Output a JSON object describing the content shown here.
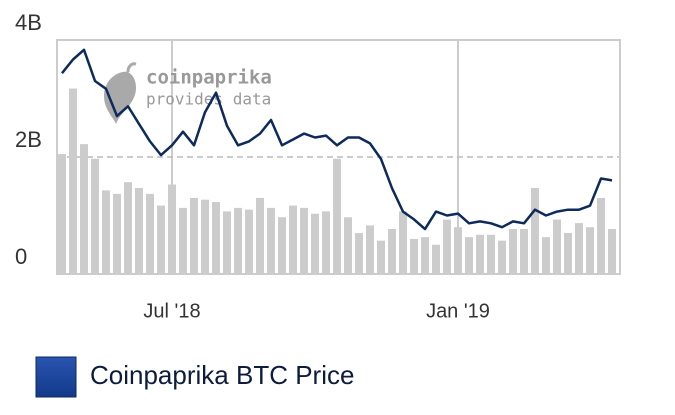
{
  "chart_data": {
    "type": "bar_line",
    "annotations": [
      "coinpaprika",
      "provides data"
    ],
    "categories": [
      null,
      null,
      null,
      null,
      null,
      null,
      null,
      null,
      null,
      null,
      "Jul '18",
      null,
      null,
      null,
      null,
      null,
      null,
      null,
      null,
      null,
      null,
      null,
      null,
      null,
      null,
      null,
      null,
      null,
      null,
      null,
      null,
      null,
      null,
      null,
      null,
      null,
      "Jan '19",
      null,
      null,
      null,
      null,
      null,
      null,
      null,
      null,
      null,
      null,
      null,
      null,
      null,
      null
    ],
    "ylim": [
      0,
      4000000000
    ],
    "yticks": [
      0,
      {
        "value": 2000000000,
        "label": "2B"
      },
      {
        "value": 4000000000,
        "label": "4B"
      }
    ],
    "y2lim": [
      1750,
      10050
    ],
    "grid": true,
    "legend": "bottom-left",
    "series": [
      {
        "type": "bar",
        "color": "#cccccc",
        "values": [
          2050000000,
          3170000000,
          2220000000,
          1970000000,
          1430000000,
          1370000000,
          1570000000,
          1470000000,
          1370000000,
          1170000000,
          1530000000,
          1130000000,
          1300000000,
          1270000000,
          1230000000,
          1070000000,
          1130000000,
          1100000000,
          1300000000,
          1130000000,
          970000000,
          1170000000,
          1130000000,
          1030000000,
          1070000000,
          1970000000,
          970000000,
          700000000,
          830000000,
          570000000,
          770000000,
          1070000000,
          600000000,
          630000000,
          500000000,
          930000000,
          800000000,
          630000000,
          670000000,
          670000000,
          570000000,
          770000000,
          770000000,
          1470000000,
          630000000,
          930000000,
          700000000,
          870000000,
          800000000,
          1300000000,
          770000000
        ]
      },
      {
        "type": "line",
        "name": "Coinpaprika BTC Price",
        "color": "#0d2a5c",
        "axis": "y2",
        "values": [
          8873,
          9358,
          9703,
          8597,
          8320,
          7352,
          7698,
          7075,
          6453,
          5969,
          6315,
          6799,
          6315,
          7490,
          8182,
          7006,
          6315,
          6453,
          6730,
          7214,
          6315,
          6522,
          6730,
          6591,
          6660,
          6315,
          6591,
          6591,
          6384,
          5830,
          4793,
          3963,
          3686,
          3341,
          3963,
          3825,
          3894,
          3548,
          3617,
          3548,
          3410,
          3617,
          3548,
          4032,
          3825,
          3963,
          4032,
          4032,
          4171,
          5139,
          5070
        ]
      }
    ]
  }
}
